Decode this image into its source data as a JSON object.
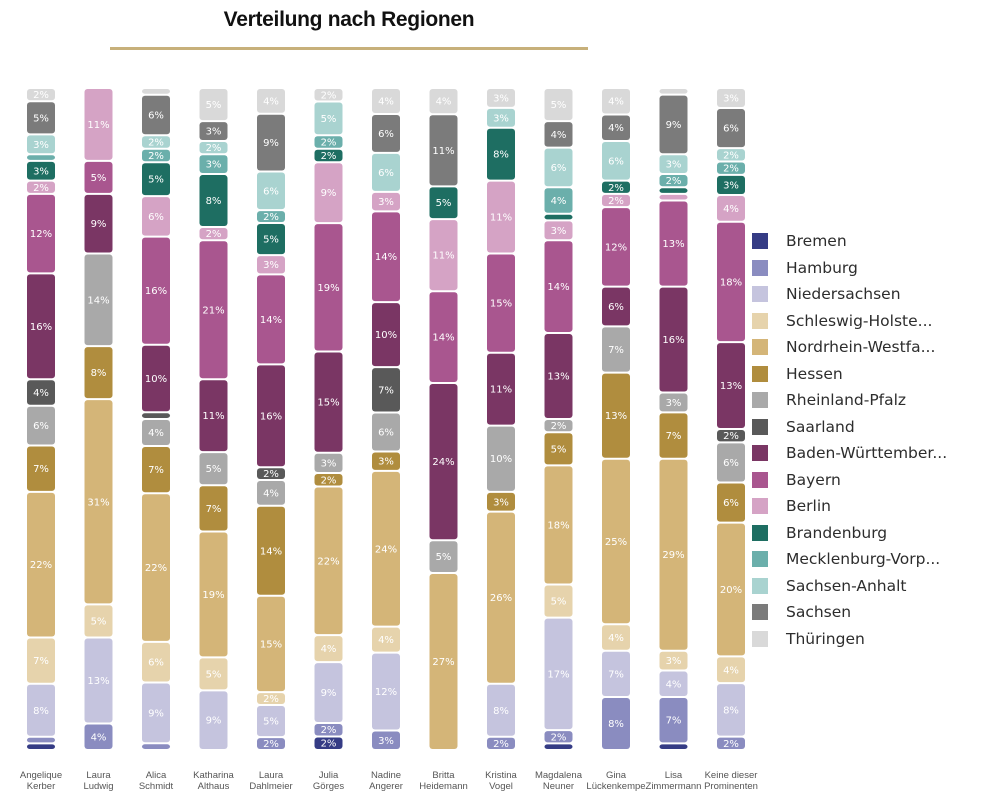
{
  "chart_data": {
    "type": "bar",
    "stacked": true,
    "normalized": true,
    "title": "Verteilung nach Regionen",
    "legend_position": "right",
    "categories": [
      [
        "Angelique",
        "Kerber"
      ],
      [
        "Laura",
        "Ludwig"
      ],
      [
        "Alica",
        "Schmidt"
      ],
      [
        "Katharina",
        "Althaus"
      ],
      [
        "Laura",
        "Dahlmeier"
      ],
      [
        "Julia",
        "Görges"
      ],
      [
        "Nadine",
        "Angerer"
      ],
      [
        "Britta",
        "Heidemann"
      ],
      [
        "Kristina",
        "Vogel"
      ],
      [
        "Magdalena",
        "Neuner"
      ],
      [
        "Gina",
        "Lückenkempe"
      ],
      [
        "Lisa",
        "Zimmermann"
      ],
      [
        "Keine dieser",
        "Prominenten"
      ]
    ],
    "series": [
      {
        "name": "Bremen",
        "color": "#353c85",
        "values": [
          1,
          0,
          0,
          0,
          0,
          2,
          0,
          0,
          0,
          1,
          0,
          1,
          0
        ],
        "labels": [
          "1%",
          "",
          "",
          "",
          "",
          "2%",
          "",
          "",
          "",
          "1%",
          "",
          "1%",
          ""
        ]
      },
      {
        "name": "Hamburg",
        "color": "#8a8cc0",
        "values": [
          1,
          4,
          1,
          0,
          2,
          2,
          3,
          0,
          2,
          2,
          8,
          7,
          2
        ],
        "labels": [
          "1%",
          "4%",
          "1%",
          "",
          "2%",
          "2%",
          "3%",
          "",
          "2%",
          "2%",
          "8%",
          "7%",
          "2%"
        ]
      },
      {
        "name": "Niedersachsen",
        "color": "#c5c4de",
        "values": [
          8,
          13,
          9,
          9,
          5,
          9,
          12,
          0,
          8,
          17,
          7,
          4,
          8
        ],
        "labels": [
          "8%",
          "13%",
          "9%",
          "9%",
          "5%",
          "9%",
          "12%",
          "",
          "8%",
          "17%",
          "7%",
          "4%",
          "8%"
        ]
      },
      {
        "name": "Schleswig-Holste...",
        "color": "#e6d3ac",
        "values": [
          7,
          5,
          6,
          5,
          2,
          4,
          4,
          0,
          0,
          5,
          4,
          3,
          4
        ],
        "labels": [
          "7%",
          "5%",
          "6%",
          "5%",
          "2%",
          "4%",
          "4%",
          "",
          "",
          "5%",
          "4%",
          "3%",
          "4%"
        ]
      },
      {
        "name": "Nordrhein-Westfa...",
        "color": "#d4b578",
        "values": [
          22,
          31,
          22,
          19,
          15,
          22,
          24,
          27,
          26,
          18,
          25,
          29,
          20
        ],
        "labels": [
          "22%",
          "31%",
          "22%",
          "19%",
          "15%",
          "22%",
          "24%",
          "27%",
          "26%",
          "18%",
          "25%",
          "29%",
          "20%"
        ]
      },
      {
        "name": "Hessen",
        "color": "#b08d3e",
        "values": [
          7,
          8,
          7,
          7,
          14,
          2,
          3,
          0,
          3,
          5,
          13,
          7,
          6
        ],
        "labels": [
          "7%",
          "8%",
          "7%",
          "7%",
          "14%",
          "2%",
          "3%",
          "",
          "3%",
          "5%",
          "13%",
          "7%",
          "6%"
        ]
      },
      {
        "name": "Rheinland-Pfalz",
        "color": "#a9a9a9",
        "values": [
          6,
          14,
          4,
          5,
          4,
          3,
          6,
          5,
          10,
          2,
          7,
          3,
          6
        ],
        "labels": [
          "6%",
          "14%",
          "4%",
          "5%",
          "4%",
          "3%",
          "6%",
          "5%",
          "10%",
          "2%",
          "7%",
          "3%",
          "6%"
        ]
      },
      {
        "name": "Saarland",
        "color": "#595959",
        "values": [
          4,
          0,
          1,
          0,
          2,
          0,
          7,
          0,
          0,
          0,
          0,
          0,
          2
        ],
        "labels": [
          "4%",
          "",
          "1%",
          "",
          "2%",
          "",
          "7%",
          "",
          "",
          "",
          "",
          "",
          "2%"
        ]
      },
      {
        "name": "Baden-Württember...",
        "color": "#7a3664",
        "values": [
          16,
          9,
          10,
          11,
          16,
          15,
          10,
          24,
          11,
          13,
          6,
          16,
          13
        ],
        "labels": [
          "16%",
          "9%",
          "10%",
          "11%",
          "16%",
          "15%",
          "10%",
          "24%",
          "11%",
          "13%",
          "6%",
          "16%",
          "13%"
        ]
      },
      {
        "name": "Bayern",
        "color": "#a9568f",
        "values": [
          12,
          5,
          16,
          21,
          14,
          19,
          14,
          14,
          15,
          14,
          12,
          13,
          18
        ],
        "labels": [
          "12%",
          "5%",
          "16%",
          "21%",
          "14%",
          "19%",
          "14%",
          "14%",
          "15%",
          "14%",
          "12%",
          "13%",
          "18%"
        ]
      },
      {
        "name": "Berlin",
        "color": "#d5a3c5",
        "values": [
          2,
          11,
          6,
          2,
          3,
          9,
          3,
          11,
          11,
          3,
          2,
          1,
          4
        ],
        "labels": [
          "2%",
          "11%",
          "6%",
          "2%",
          "3%",
          "9%",
          "3%",
          "11%",
          "11%",
          "3%",
          "2%",
          "1%",
          "4%"
        ]
      },
      {
        "name": "Brandenburg",
        "color": "#1e6e62",
        "values": [
          3,
          0,
          5,
          8,
          5,
          2,
          0,
          5,
          8,
          1,
          2,
          1,
          3
        ],
        "labels": [
          "3%",
          "",
          "5%",
          "8%",
          "5%",
          "2%",
          "",
          "5%",
          "8%",
          "1%",
          "2%",
          "1%",
          "3%"
        ]
      },
      {
        "name": "Mecklenburg-Vorp...",
        "color": "#6bafab",
        "values": [
          1,
          0,
          2,
          3,
          2,
          2,
          0,
          0,
          0,
          4,
          0,
          2,
          2
        ],
        "labels": [
          "1%",
          "",
          "2%",
          "3%",
          "2%",
          "2%",
          "",
          "",
          "",
          "4%",
          "",
          "2%",
          "2%"
        ]
      },
      {
        "name": "Sachsen-Anhalt",
        "color": "#a9d3d0",
        "values": [
          3,
          0,
          2,
          2,
          6,
          5,
          6,
          0,
          3,
          6,
          6,
          3,
          2
        ],
        "labels": [
          "3%",
          "",
          "2%",
          "2%",
          "6%",
          "5%",
          "6%",
          "",
          "3%",
          "6%",
          "6%",
          "3%",
          "2%"
        ]
      },
      {
        "name": "Sachsen",
        "color": "#7b7b7b",
        "values": [
          5,
          0,
          6,
          3,
          9,
          0,
          6,
          11,
          0,
          4,
          4,
          9,
          6
        ],
        "labels": [
          "5%",
          "",
          "6%",
          "3%",
          "9%",
          "",
          "6%",
          "11%",
          "",
          "4%",
          "4%",
          "9%",
          "6%"
        ]
      },
      {
        "name": "Thüringen",
        "color": "#d9d9d9",
        "values": [
          2,
          0,
          1,
          5,
          4,
          2,
          4,
          4,
          3,
          5,
          4,
          1,
          3
        ],
        "labels": [
          "2%",
          "",
          "1%",
          "5%",
          "4%",
          "2%",
          "4%",
          "4%",
          "3%",
          "5%",
          "4%",
          "1%",
          "3%"
        ]
      }
    ]
  }
}
